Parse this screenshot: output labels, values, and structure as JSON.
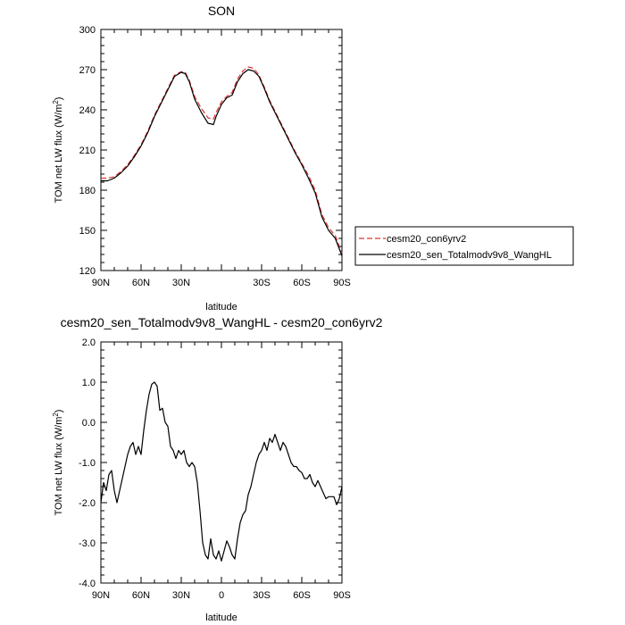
{
  "figure": {
    "panels": [
      {
        "title": "SON",
        "xlabel": "latitude",
        "ylabel_main": "TOM net LW flux (W/m",
        "ylabel_sup": "2",
        "ylabel_close": ")"
      },
      {
        "title": "cesm20_sen_Totalmodv9v8_WangHL - cesm20_con6yrv2",
        "xlabel": "latitude",
        "ylabel_main": "TOM net LW flux (W/m",
        "ylabel_sup": "2",
        "ylabel_close": ")"
      }
    ],
    "legend": {
      "entries": [
        {
          "label": "cesm20_con6yrv2",
          "color": "#e03030",
          "dash": "dashed"
        },
        {
          "label": "cesm20_sen_Totalmodv9v8_WangHL",
          "color": "#000000",
          "dash": "solid"
        }
      ],
      "placement": "right of top panel"
    }
  },
  "chart_data": [
    {
      "type": "line",
      "title": "SON",
      "xlabel": "latitude",
      "ylabel": "TOM net LW flux (W/m2)",
      "xlim": [
        90,
        -90
      ],
      "ylim": [
        120,
        300
      ],
      "xticks": [
        90,
        60,
        30,
        0,
        -30,
        -60,
        -90
      ],
      "xticklabels": [
        "90N",
        "60N",
        "30N",
        "",
        "30S",
        "60S",
        "90S"
      ],
      "yticks": [
        120,
        150,
        180,
        210,
        240,
        270,
        300
      ],
      "yticklabels": [
        "120",
        "150",
        "180",
        "210",
        "240",
        "270",
        "300"
      ],
      "grid": false,
      "x": [
        90,
        85,
        80,
        75,
        70,
        65,
        60,
        55,
        50,
        45,
        40,
        35,
        30,
        27,
        24,
        20,
        15,
        10,
        6,
        4,
        0,
        -4,
        -8,
        -12,
        -16,
        -20,
        -24,
        -28,
        -32,
        -36,
        -40,
        -45,
        -50,
        -55,
        -60,
        -65,
        -70,
        -75,
        -80,
        -85,
        -90
      ],
      "series": [
        {
          "name": "cesm20_con6yrv2",
          "color": "#e03030",
          "dash": "dashed",
          "values": [
            189,
            189,
            190,
            194,
            199,
            206,
            214,
            224,
            236,
            246,
            256,
            266,
            268.5,
            268,
            262,
            250,
            241,
            234,
            233,
            238,
            246,
            250,
            253,
            263,
            269,
            272,
            271,
            266,
            257,
            247,
            239,
            229,
            219,
            209,
            200,
            191,
            180,
            162,
            152,
            146,
            133
          ]
        },
        {
          "name": "cesm20_sen_Totalmodv9v8_WangHL",
          "color": "#000000",
          "dash": "solid",
          "values": [
            187,
            187,
            189,
            193,
            198,
            205,
            213,
            223,
            235,
            245,
            255,
            265,
            268,
            267,
            261,
            248,
            238,
            230,
            229,
            235,
            244,
            249,
            251,
            261,
            267,
            270,
            269,
            265,
            256,
            246,
            238,
            228,
            218,
            208,
            199,
            189,
            178,
            160,
            150,
            144,
            131
          ]
        }
      ]
    },
    {
      "type": "line",
      "title": "cesm20_sen_Totalmodv9v8_WangHL - cesm20_con6yrv2",
      "xlabel": "latitude",
      "ylabel": "TOM net LW flux (W/m2)",
      "xlim": [
        90,
        -90
      ],
      "ylim": [
        -4,
        2
      ],
      "xticks": [
        90,
        60,
        30,
        0,
        -30,
        -60,
        -90
      ],
      "xticklabels": [
        "90N",
        "60N",
        "30N",
        "0",
        "30S",
        "60S",
        "90S"
      ],
      "yticks": [
        -4,
        -3,
        -2,
        -1,
        0,
        1,
        2
      ],
      "yticklabels": [
        "-4.0",
        "-3.0",
        "-2.0",
        "-1.0",
        "0.0",
        "1.0",
        "2.0"
      ],
      "grid": false,
      "x": [
        90,
        88,
        86,
        84,
        82,
        80,
        78,
        76,
        74,
        72,
        70,
        68,
        66,
        64,
        62,
        60,
        58,
        56,
        54,
        52,
        50,
        48,
        46,
        44,
        42,
        40,
        38,
        36,
        34,
        32,
        30,
        28,
        26,
        24,
        22,
        20,
        18,
        16,
        14,
        12,
        10,
        8,
        6,
        4,
        2,
        0,
        -2,
        -4,
        -6,
        -8,
        -10,
        -12,
        -14,
        -16,
        -18,
        -20,
        -22,
        -24,
        -26,
        -28,
        -30,
        -32,
        -34,
        -36,
        -38,
        -40,
        -42,
        -44,
        -46,
        -48,
        -50,
        -52,
        -54,
        -56,
        -58,
        -60,
        -62,
        -64,
        -66,
        -68,
        -70,
        -72,
        -74,
        -76,
        -78,
        -80,
        -82,
        -84,
        -86,
        -88,
        -90
      ],
      "series": [
        {
          "name": "",
          "color": "#000000",
          "dash": "solid",
          "values": [
            -2.0,
            -1.5,
            -1.7,
            -1.3,
            -1.2,
            -1.7,
            -2.0,
            -1.7,
            -1.4,
            -1.1,
            -0.8,
            -0.6,
            -0.5,
            -0.8,
            -0.6,
            -0.8,
            -0.2,
            0.3,
            0.7,
            0.95,
            1.0,
            0.9,
            0.3,
            0.35,
            0.0,
            -0.1,
            -0.6,
            -0.7,
            -0.9,
            -0.7,
            -0.8,
            -0.7,
            -1.0,
            -1.1,
            -1.0,
            -1.1,
            -1.5,
            -2.2,
            -3.0,
            -3.3,
            -3.4,
            -2.9,
            -3.3,
            -3.4,
            -3.2,
            -3.45,
            -3.2,
            -2.95,
            -3.1,
            -3.3,
            -3.4,
            -2.9,
            -2.5,
            -2.3,
            -2.2,
            -1.8,
            -1.6,
            -1.3,
            -1.0,
            -0.8,
            -0.7,
            -0.5,
            -0.7,
            -0.4,
            -0.5,
            -0.3,
            -0.5,
            -0.7,
            -0.5,
            -0.6,
            -0.8,
            -1.0,
            -1.1,
            -1.1,
            -1.2,
            -1.25,
            -1.4,
            -1.4,
            -1.3,
            -1.5,
            -1.6,
            -1.45,
            -1.6,
            -1.75,
            -1.9,
            -1.85,
            -1.85,
            -1.85,
            -2.05,
            -1.9,
            -1.6
          ]
        }
      ]
    }
  ]
}
